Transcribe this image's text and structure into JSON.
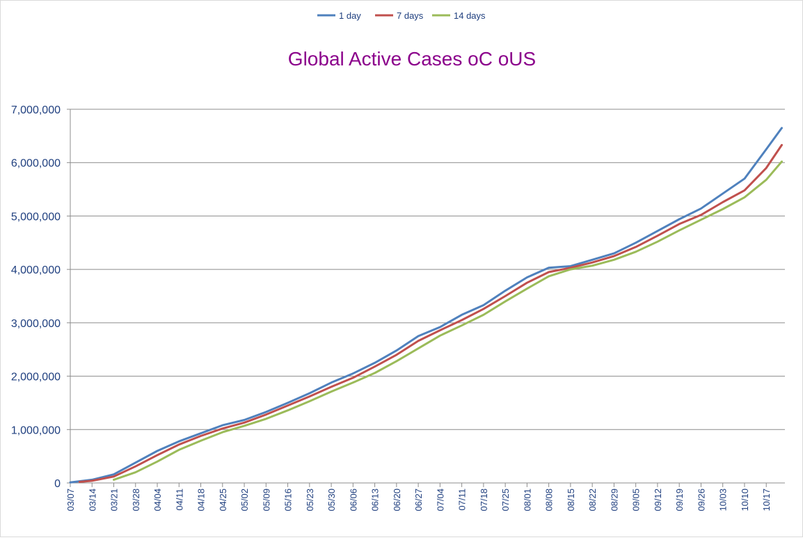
{
  "chart_data": {
    "type": "line",
    "title": "Global Active Cases oC oUS",
    "xlabel": "",
    "ylabel": "",
    "ylim": [
      0,
      7000000
    ],
    "yticks": [
      0,
      1000000,
      2000000,
      3000000,
      4000000,
      5000000,
      6000000,
      7000000
    ],
    "ytick_labels": [
      "0",
      "1,000,000",
      "2,000,000",
      "3,000,000",
      "4,000,000",
      "5,000,000",
      "6,000,000",
      "7,000,000"
    ],
    "x_start": "03/07",
    "x_end": "10/22",
    "xtick_labels": [
      "03/07",
      "03/14",
      "03/21",
      "03/28",
      "04/04",
      "04/11",
      "04/18",
      "04/25",
      "05/02",
      "05/09",
      "05/16",
      "05/23",
      "05/30",
      "06/06",
      "06/13",
      "06/20",
      "06/27",
      "07/04",
      "07/11",
      "07/18",
      "07/25",
      "08/01",
      "08/08",
      "08/15",
      "08/22",
      "08/29",
      "09/05",
      "09/12",
      "09/19",
      "09/26",
      "10/03",
      "10/10",
      "10/17"
    ],
    "grid": true,
    "legend_position": "top-center",
    "series": [
      {
        "name": "1 day",
        "color": "#4F81BD",
        "start": "03/07",
        "points": [
          [
            "03/07",
            10000
          ],
          [
            "03/14",
            60000
          ],
          [
            "03/21",
            160000
          ],
          [
            "03/28",
            380000
          ],
          [
            "04/04",
            600000
          ],
          [
            "04/11",
            780000
          ],
          [
            "04/18",
            930000
          ],
          [
            "04/25",
            1080000
          ],
          [
            "05/02",
            1180000
          ],
          [
            "05/09",
            1330000
          ],
          [
            "05/16",
            1500000
          ],
          [
            "05/23",
            1680000
          ],
          [
            "05/30",
            1880000
          ],
          [
            "06/06",
            2050000
          ],
          [
            "06/13",
            2250000
          ],
          [
            "06/20",
            2480000
          ],
          [
            "06/27",
            2750000
          ],
          [
            "07/04",
            2920000
          ],
          [
            "07/11",
            3150000
          ],
          [
            "07/18",
            3330000
          ],
          [
            "07/25",
            3600000
          ],
          [
            "08/01",
            3850000
          ],
          [
            "08/08",
            4030000
          ],
          [
            "08/15",
            4060000
          ],
          [
            "08/22",
            4180000
          ],
          [
            "08/29",
            4300000
          ],
          [
            "09/05",
            4500000
          ],
          [
            "09/12",
            4720000
          ],
          [
            "09/19",
            4940000
          ],
          [
            "09/26",
            5140000
          ],
          [
            "10/03",
            5420000
          ],
          [
            "10/10",
            5700000
          ],
          [
            "10/17",
            6250000
          ],
          [
            "10/22",
            6650000
          ]
        ]
      },
      {
        "name": "7 days",
        "color": "#C0504D",
        "start": "03/10",
        "points": [
          [
            "03/10",
            20000
          ],
          [
            "03/14",
            40000
          ],
          [
            "03/21",
            120000
          ],
          [
            "03/28",
            310000
          ],
          [
            "04/04",
            520000
          ],
          [
            "04/11",
            720000
          ],
          [
            "04/18",
            880000
          ],
          [
            "04/25",
            1020000
          ],
          [
            "05/02",
            1130000
          ],
          [
            "05/09",
            1280000
          ],
          [
            "05/16",
            1450000
          ],
          [
            "05/23",
            1620000
          ],
          [
            "05/30",
            1800000
          ],
          [
            "06/06",
            1970000
          ],
          [
            "06/13",
            2180000
          ],
          [
            "06/20",
            2400000
          ],
          [
            "06/27",
            2660000
          ],
          [
            "07/04",
            2860000
          ],
          [
            "07/11",
            3050000
          ],
          [
            "07/18",
            3260000
          ],
          [
            "07/25",
            3500000
          ],
          [
            "08/01",
            3750000
          ],
          [
            "08/08",
            3950000
          ],
          [
            "08/15",
            4030000
          ],
          [
            "08/22",
            4130000
          ],
          [
            "08/29",
            4250000
          ],
          [
            "09/05",
            4420000
          ],
          [
            "09/12",
            4630000
          ],
          [
            "09/19",
            4850000
          ],
          [
            "09/26",
            5020000
          ],
          [
            "10/03",
            5260000
          ],
          [
            "10/10",
            5480000
          ],
          [
            "10/17",
            5900000
          ],
          [
            "10/22",
            6330000
          ]
        ]
      },
      {
        "name": "14 days",
        "color": "#9BBB59",
        "start": "03/21",
        "points": [
          [
            "03/21",
            60000
          ],
          [
            "03/28",
            200000
          ],
          [
            "04/04",
            400000
          ],
          [
            "04/11",
            620000
          ],
          [
            "04/18",
            790000
          ],
          [
            "04/25",
            950000
          ],
          [
            "05/02",
            1070000
          ],
          [
            "05/09",
            1200000
          ],
          [
            "05/16",
            1360000
          ],
          [
            "05/23",
            1530000
          ],
          [
            "05/30",
            1710000
          ],
          [
            "06/06",
            1880000
          ],
          [
            "06/13",
            2060000
          ],
          [
            "06/20",
            2280000
          ],
          [
            "06/27",
            2520000
          ],
          [
            "07/04",
            2760000
          ],
          [
            "07/11",
            2950000
          ],
          [
            "07/18",
            3150000
          ],
          [
            "07/25",
            3400000
          ],
          [
            "08/01",
            3640000
          ],
          [
            "08/08",
            3870000
          ],
          [
            "08/15",
            4000000
          ],
          [
            "08/22",
            4070000
          ],
          [
            "08/29",
            4180000
          ],
          [
            "09/05",
            4330000
          ],
          [
            "09/12",
            4520000
          ],
          [
            "09/19",
            4730000
          ],
          [
            "09/26",
            4930000
          ],
          [
            "10/03",
            5130000
          ],
          [
            "10/10",
            5350000
          ],
          [
            "10/17",
            5680000
          ],
          [
            "10/22",
            6020000
          ]
        ]
      }
    ]
  }
}
